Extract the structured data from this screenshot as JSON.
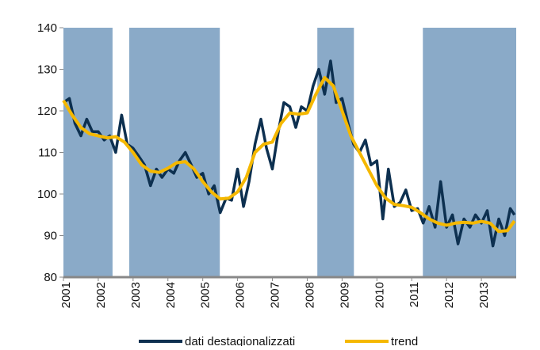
{
  "chart_data": {
    "type": "line",
    "xlim": [
      2001,
      2014
    ],
    "ylim": [
      80,
      140
    ],
    "xticks": [
      2001,
      2002,
      2003,
      2004,
      2005,
      2006,
      2007,
      2008,
      2009,
      2010,
      2011,
      2012,
      2013
    ],
    "yticks": [
      80,
      90,
      100,
      110,
      120,
      130,
      140
    ],
    "shaded_periods": [
      {
        "start": 2001.0,
        "end": 2002.41
      },
      {
        "start": 2002.89,
        "end": 2005.49
      },
      {
        "start": 2008.29,
        "end": 2009.34
      },
      {
        "start": 2011.32,
        "end": 2014.0
      }
    ],
    "shade_color": "#8aaac8",
    "series": [
      {
        "name": "dati destagionalizzati",
        "color": "#0d3050",
        "x": [
          2001,
          2001.17,
          2001.33,
          2001.5,
          2001.67,
          2001.83,
          2002,
          2002.17,
          2002.33,
          2002.5,
          2002.67,
          2002.83,
          2003,
          2003.17,
          2003.33,
          2003.5,
          2003.67,
          2003.83,
          2004,
          2004.17,
          2004.33,
          2004.5,
          2004.67,
          2004.83,
          2005,
          2005.17,
          2005.33,
          2005.5,
          2005.67,
          2005.83,
          2006,
          2006.17,
          2006.33,
          2006.5,
          2006.67,
          2006.83,
          2007,
          2007.17,
          2007.33,
          2007.5,
          2007.67,
          2007.83,
          2008,
          2008.17,
          2008.33,
          2008.5,
          2008.67,
          2008.83,
          2009,
          2009.17,
          2009.33,
          2009.5,
          2009.67,
          2009.83,
          2010,
          2010.17,
          2010.33,
          2010.5,
          2010.67,
          2010.83,
          2011,
          2011.17,
          2011.33,
          2011.5,
          2011.67,
          2011.83,
          2012,
          2012.17,
          2012.33,
          2012.5,
          2012.67,
          2012.83,
          2013,
          2013.17,
          2013.33,
          2013.5,
          2013.67,
          2013.83,
          2013.95
        ],
        "values": [
          122,
          123,
          117,
          114,
          118,
          115,
          115,
          113,
          114,
          110,
          119,
          112,
          111,
          109,
          107,
          102,
          106,
          104,
          106,
          105,
          108,
          110,
          107,
          104,
          105,
          100,
          102,
          95.5,
          99,
          98.5,
          106,
          97,
          103,
          112,
          118,
          111,
          106,
          115,
          122,
          121,
          116,
          121,
          120,
          126,
          130,
          124,
          132,
          122,
          123,
          117,
          112,
          110,
          113,
          107,
          108,
          94,
          106,
          97,
          98,
          101,
          96,
          96.5,
          93,
          97,
          92,
          103,
          92,
          95,
          88,
          94,
          92,
          95,
          93,
          96,
          87.5,
          94,
          90,
          96.5,
          95
        ]
      },
      {
        "name": "trend",
        "color": "#f5b800",
        "x": [
          2001,
          2001.25,
          2001.5,
          2001.75,
          2002,
          2002.25,
          2002.5,
          2002.75,
          2003,
          2003.25,
          2003.5,
          2003.75,
          2004,
          2004.25,
          2004.5,
          2004.75,
          2005,
          2005.25,
          2005.5,
          2005.75,
          2006,
          2006.25,
          2006.5,
          2006.75,
          2007,
          2007.25,
          2007.5,
          2007.75,
          2008,
          2008.25,
          2008.5,
          2008.75,
          2009,
          2009.25,
          2009.5,
          2009.75,
          2010,
          2010.25,
          2010.5,
          2010.75,
          2011,
          2011.25,
          2011.5,
          2011.75,
          2012,
          2012.25,
          2012.5,
          2012.75,
          2013,
          2013.25,
          2013.5,
          2013.75,
          2013.95
        ],
        "values": [
          122.5,
          119,
          116,
          114.5,
          114,
          113.5,
          113.8,
          112.5,
          110,
          107,
          105.5,
          105.2,
          106.2,
          107.5,
          107.8,
          106,
          103,
          100.5,
          98.8,
          99,
          100.5,
          104,
          110,
          112,
          112.5,
          117,
          119.5,
          119.2,
          119.5,
          124,
          128,
          126,
          120,
          114,
          110,
          106,
          102,
          99,
          97.5,
          97.2,
          96.8,
          95.5,
          94,
          93,
          92.5,
          93,
          93.2,
          93,
          93.4,
          93,
          91,
          91.2,
          93.5
        ]
      }
    ]
  }
}
